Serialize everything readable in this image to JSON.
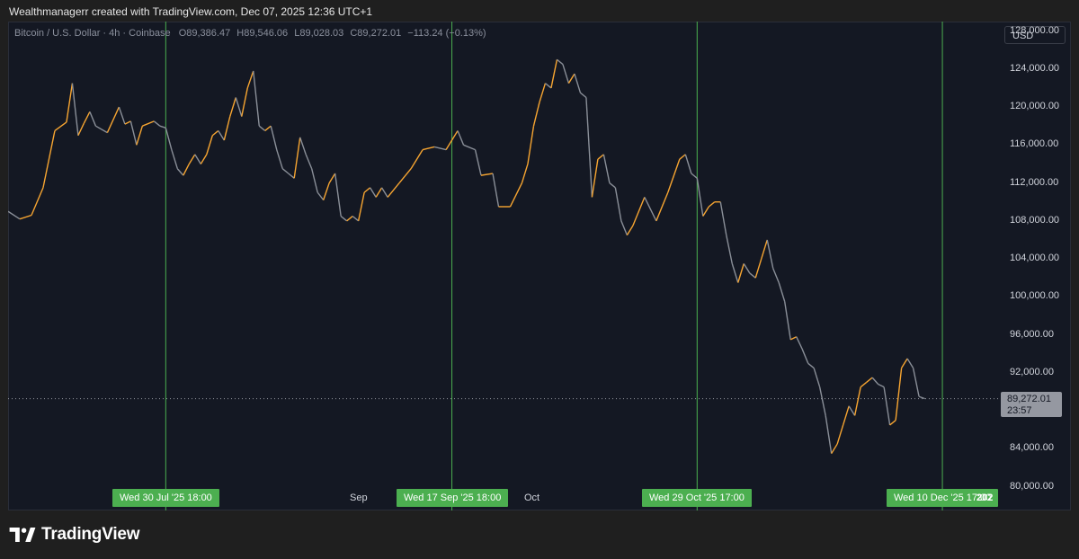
{
  "caption": "Wealthmanagerr created with TradingView.com, Dec 07, 2025 12:36 UTC+1",
  "legend": {
    "symbol": "Bitcoin / U.S. Dollar · 4h · Coinbase",
    "open_label": "O",
    "open": "89,386.47",
    "high_label": "H",
    "high": "89,546.06",
    "low_label": "L",
    "low": "89,028.03",
    "close_label": "C",
    "close": "89,272.01",
    "change": "−113.24 (−0.13%)"
  },
  "currency": "USD",
  "last_price": {
    "value": "89,272.01",
    "countdown": "23:57"
  },
  "footer": {
    "brand": "TradingView"
  },
  "colors": {
    "up": "#f7a531",
    "down": "#8a8f98",
    "marker": "#4caf50",
    "background": "#141823"
  },
  "chart_data": {
    "type": "line",
    "title": "Bitcoin / U.S. Dollar · 4h · Coinbase",
    "y_axis": {
      "ticks": [
        "128,000.00",
        "124,000.00",
        "120,000.00",
        "116,000.00",
        "112,000.00",
        "108,000.00",
        "104,000.00",
        "100,000.00",
        "96,000.00",
        "92,000.00",
        "84,000.00",
        "80,000.00"
      ],
      "ylim": [
        77500,
        129000
      ]
    },
    "x_axis": {
      "month_labels": [
        "Sep",
        "Oct",
        "202"
      ],
      "range": [
        "2025-07-03",
        "2025-12-20"
      ]
    },
    "series": [
      {
        "name": "Bitcoin / U.S. Dollar",
        "points": [
          [
            "2025-07-03",
            109000
          ],
          [
            "2025-07-05",
            108200
          ],
          [
            "2025-07-07",
            108600
          ],
          [
            "2025-07-09",
            111500
          ],
          [
            "2025-07-11",
            117500
          ],
          [
            "2025-07-13",
            118400
          ],
          [
            "2025-07-14",
            122500
          ],
          [
            "2025-07-15",
            117000
          ],
          [
            "2025-07-16",
            118300
          ],
          [
            "2025-07-17",
            119500
          ],
          [
            "2025-07-18",
            118000
          ],
          [
            "2025-07-20",
            117300
          ],
          [
            "2025-07-22",
            120000
          ],
          [
            "2025-07-23",
            118200
          ],
          [
            "2025-07-24",
            118500
          ],
          [
            "2025-07-25",
            116000
          ],
          [
            "2025-07-26",
            118000
          ],
          [
            "2025-07-28",
            118500
          ],
          [
            "2025-07-29",
            118000
          ],
          [
            "2025-07-30",
            117800
          ],
          [
            "2025-07-31",
            115500
          ],
          [
            "2025-08-01",
            113500
          ],
          [
            "2025-08-02",
            112800
          ],
          [
            "2025-08-03",
            114000
          ],
          [
            "2025-08-04",
            115000
          ],
          [
            "2025-08-05",
            114000
          ],
          [
            "2025-08-06",
            115000
          ],
          [
            "2025-08-07",
            117000
          ],
          [
            "2025-08-08",
            117500
          ],
          [
            "2025-08-09",
            116500
          ],
          [
            "2025-08-10",
            119000
          ],
          [
            "2025-08-11",
            121000
          ],
          [
            "2025-08-12",
            119000
          ],
          [
            "2025-08-13",
            122000
          ],
          [
            "2025-08-14",
            123800
          ],
          [
            "2025-08-15",
            118000
          ],
          [
            "2025-08-16",
            117500
          ],
          [
            "2025-08-17",
            118000
          ],
          [
            "2025-08-18",
            115500
          ],
          [
            "2025-08-19",
            113500
          ],
          [
            "2025-08-20",
            113000
          ],
          [
            "2025-08-21",
            112500
          ],
          [
            "2025-08-22",
            116800
          ],
          [
            "2025-08-23",
            115000
          ],
          [
            "2025-08-24",
            113500
          ],
          [
            "2025-08-25",
            111000
          ],
          [
            "2025-08-26",
            110200
          ],
          [
            "2025-08-27",
            112000
          ],
          [
            "2025-08-28",
            113000
          ],
          [
            "2025-08-29",
            108500
          ],
          [
            "2025-08-30",
            108000
          ],
          [
            "2025-08-31",
            108500
          ],
          [
            "2025-09-01",
            108000
          ],
          [
            "2025-09-02",
            111000
          ],
          [
            "2025-09-03",
            111500
          ],
          [
            "2025-09-04",
            110500
          ],
          [
            "2025-09-05",
            111500
          ],
          [
            "2025-09-06",
            110500
          ],
          [
            "2025-09-08",
            112000
          ],
          [
            "2025-09-10",
            113500
          ],
          [
            "2025-09-12",
            115500
          ],
          [
            "2025-09-14",
            115800
          ],
          [
            "2025-09-16",
            115500
          ],
          [
            "2025-09-17",
            116500
          ],
          [
            "2025-09-18",
            117500
          ],
          [
            "2025-09-19",
            116000
          ],
          [
            "2025-09-21",
            115500
          ],
          [
            "2025-09-22",
            112800
          ],
          [
            "2025-09-24",
            113000
          ],
          [
            "2025-09-25",
            109500
          ],
          [
            "2025-09-27",
            109500
          ],
          [
            "2025-09-29",
            112000
          ],
          [
            "2025-09-30",
            114000
          ],
          [
            "2025-10-01",
            118000
          ],
          [
            "2025-10-02",
            120500
          ],
          [
            "2025-10-03",
            122500
          ],
          [
            "2025-10-04",
            122000
          ],
          [
            "2025-10-05",
            125000
          ],
          [
            "2025-10-06",
            124500
          ],
          [
            "2025-10-07",
            122500
          ],
          [
            "2025-10-08",
            123500
          ],
          [
            "2025-10-09",
            121500
          ],
          [
            "2025-10-10",
            121000
          ],
          [
            "2025-10-11",
            110500
          ],
          [
            "2025-10-12",
            114500
          ],
          [
            "2025-10-13",
            115000
          ],
          [
            "2025-10-14",
            112000
          ],
          [
            "2025-10-15",
            111500
          ],
          [
            "2025-10-16",
            108000
          ],
          [
            "2025-10-17",
            106500
          ],
          [
            "2025-10-18",
            107500
          ],
          [
            "2025-10-20",
            110500
          ],
          [
            "2025-10-22",
            108000
          ],
          [
            "2025-10-24",
            111000
          ],
          [
            "2025-10-26",
            114500
          ],
          [
            "2025-10-27",
            115000
          ],
          [
            "2025-10-28",
            113000
          ],
          [
            "2025-10-29",
            112500
          ],
          [
            "2025-10-30",
            108500
          ],
          [
            "2025-10-31",
            109500
          ],
          [
            "2025-11-01",
            110000
          ],
          [
            "2025-11-02",
            110000
          ],
          [
            "2025-11-03",
            106500
          ],
          [
            "2025-11-04",
            103500
          ],
          [
            "2025-11-05",
            101500
          ],
          [
            "2025-11-06",
            103500
          ],
          [
            "2025-11-07",
            102500
          ],
          [
            "2025-11-08",
            102000
          ],
          [
            "2025-11-09",
            104000
          ],
          [
            "2025-11-10",
            106000
          ],
          [
            "2025-11-11",
            103000
          ],
          [
            "2025-11-12",
            101500
          ],
          [
            "2025-11-13",
            99500
          ],
          [
            "2025-11-14",
            95500
          ],
          [
            "2025-11-15",
            95800
          ],
          [
            "2025-11-16",
            94500
          ],
          [
            "2025-11-17",
            93000
          ],
          [
            "2025-11-18",
            92500
          ],
          [
            "2025-11-19",
            90500
          ],
          [
            "2025-11-20",
            87500
          ],
          [
            "2025-11-21",
            83500
          ],
          [
            "2025-11-22",
            84500
          ],
          [
            "2025-11-23",
            86500
          ],
          [
            "2025-11-24",
            88500
          ],
          [
            "2025-11-25",
            87500
          ],
          [
            "2025-11-26",
            90500
          ],
          [
            "2025-11-27",
            91000
          ],
          [
            "2025-11-28",
            91500
          ],
          [
            "2025-11-29",
            90800
          ],
          [
            "2025-11-30",
            90500
          ],
          [
            "2025-12-01",
            86500
          ],
          [
            "2025-12-02",
            87000
          ],
          [
            "2025-12-03",
            92500
          ],
          [
            "2025-12-04",
            93500
          ],
          [
            "2025-12-05",
            92500
          ],
          [
            "2025-12-06",
            89500
          ],
          [
            "2025-12-07",
            89272
          ]
        ],
        "last": 89272.01
      }
    ],
    "markers": [
      {
        "label": "Wed 30 Jul '25   18:00",
        "date": "2025-07-30"
      },
      {
        "label": "Wed 17 Sep '25   18:00",
        "date": "2025-09-17"
      },
      {
        "label": "Wed 29 Oct '25   17:00",
        "date": "2025-10-29"
      },
      {
        "label": "Wed 10 Dec '25   17:00",
        "date": "2025-12-10"
      }
    ],
    "grid": false,
    "legend_position": "top-left"
  }
}
